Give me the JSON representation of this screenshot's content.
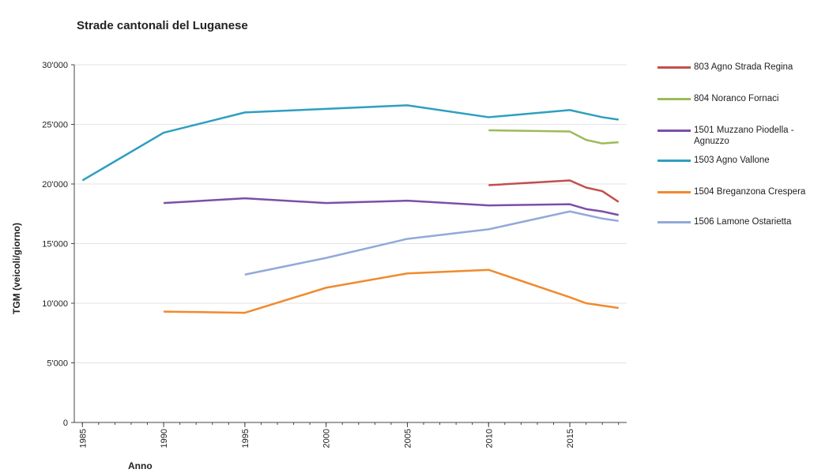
{
  "chart_data": {
    "type": "line",
    "title": "Strade cantonali del Luganese",
    "xlabel": "Anno",
    "ylabel": "TGM (veicoli/giorno)",
    "x": [
      1985,
      1990,
      1995,
      2000,
      2005,
      2010,
      2015,
      2016,
      2017,
      2018
    ],
    "xlim": [
      1984.5,
      2018.5
    ],
    "xticks": [
      1985,
      1990,
      1995,
      2000,
      2005,
      2010,
      2015
    ],
    "ylim": [
      0,
      30000
    ],
    "yticks": [
      0,
      {
        "value": 5000,
        "label": "5'000"
      },
      {
        "value": 10000,
        "label": "10'000"
      },
      {
        "value": 15000,
        "label": "15'000"
      },
      {
        "value": 20000,
        "label": "20'000"
      },
      {
        "value": 25000,
        "label": "25'000"
      },
      {
        "value": 30000,
        "label": "30'000"
      }
    ],
    "grid": true,
    "legend": "right",
    "series": [
      {
        "name": "803 Agno Strada Regina",
        "color": "#c0504d",
        "values": [
          null,
          null,
          null,
          null,
          null,
          19900,
          20300,
          19700,
          19400,
          18500
        ]
      },
      {
        "name": "804 Noranco Fornaci",
        "color": "#9bbb59",
        "values": [
          null,
          null,
          null,
          null,
          null,
          24500,
          24400,
          23700,
          23400,
          23500
        ]
      },
      {
        "name": "1501 Muzzano Piodella - Agnuzzo",
        "color": "#7d4ea6",
        "values": [
          null,
          18400,
          18800,
          18400,
          18600,
          18200,
          18300,
          17900,
          17700,
          17400
        ]
      },
      {
        "name": "1503 Agno Vallone",
        "color": "#2e9fbf",
        "values": [
          20300,
          24300,
          26000,
          26300,
          26600,
          25600,
          26200,
          25900,
          25600,
          25400
        ]
      },
      {
        "name": "1504 Breganzona Crespera",
        "color": "#f08a2c",
        "values": [
          null,
          9300,
          9200,
          11300,
          12500,
          12800,
          10500,
          10000,
          9800,
          9600
        ]
      },
      {
        "name": "1506 Lamone Ostarietta",
        "color": "#92a9d8",
        "values": [
          null,
          null,
          12400,
          13800,
          15400,
          16200,
          17700,
          17400,
          17100,
          16900
        ]
      }
    ]
  }
}
